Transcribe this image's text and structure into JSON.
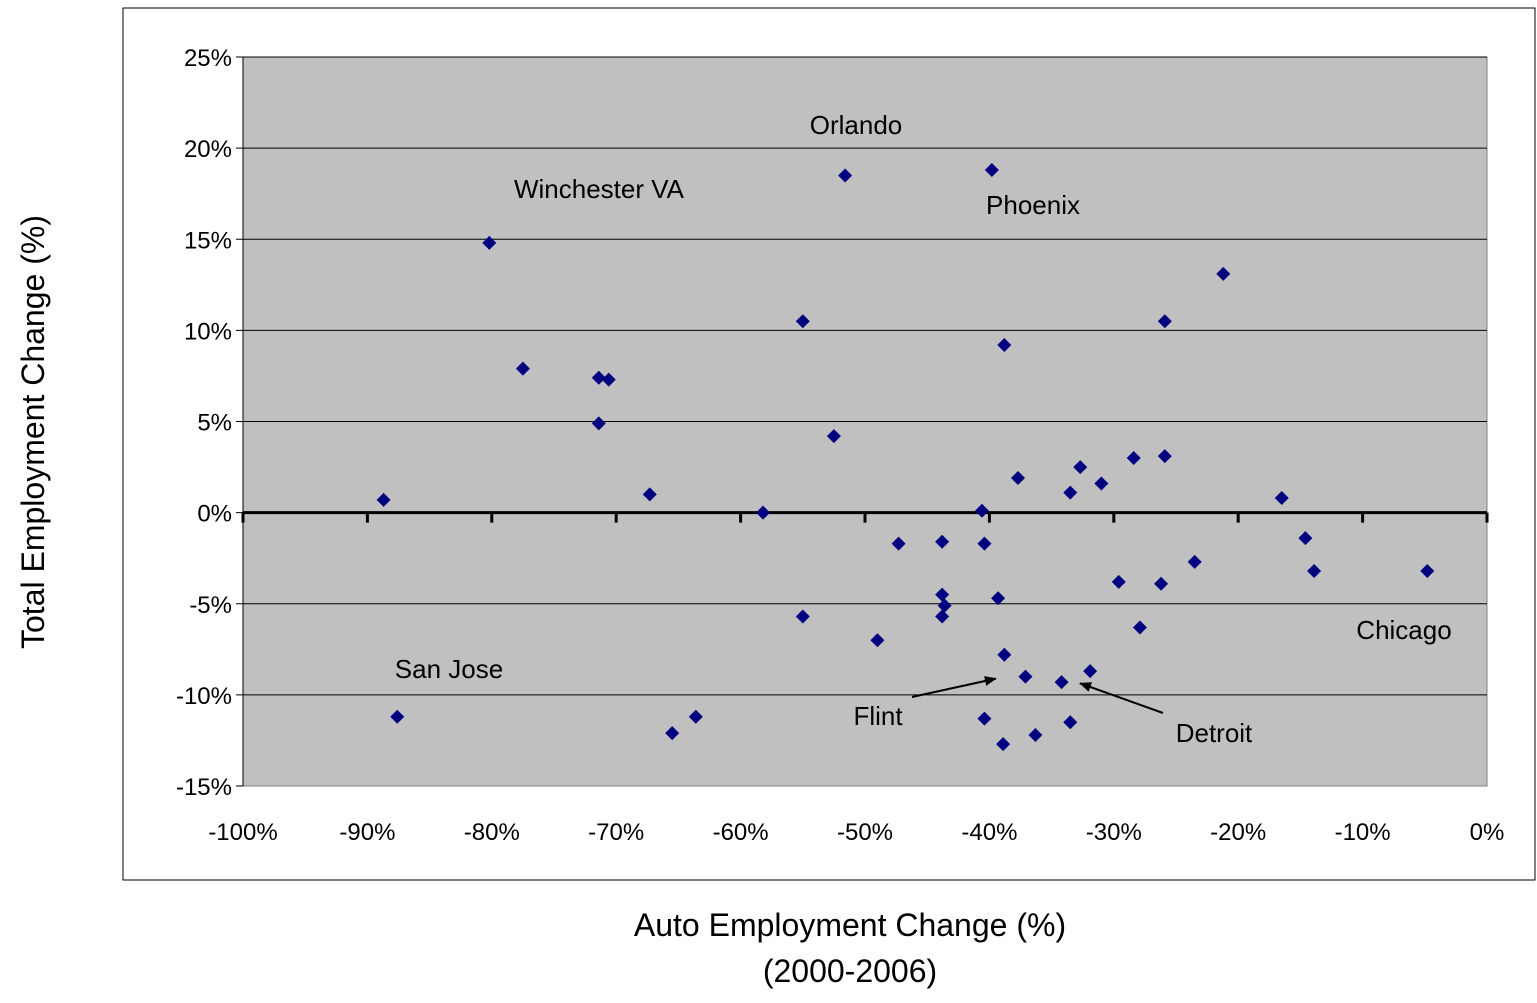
{
  "chart_data": {
    "type": "scatter",
    "title": "",
    "xlabel": "Auto Employment Change (%)",
    "xlabel_sub": "(2000-2006)",
    "ylabel": "Total Employment Change (%)",
    "xlim": [
      -100,
      0
    ],
    "ylim": [
      -15,
      25
    ],
    "x_ticks": [
      -100,
      -90,
      -80,
      -70,
      -60,
      -50,
      -40,
      -30,
      -20,
      -10,
      0
    ],
    "x_tick_labels": [
      "-100%",
      "-90%",
      "-80%",
      "-70%",
      "-60%",
      "-50%",
      "-40%",
      "-30%",
      "-20%",
      "-10%",
      "0%"
    ],
    "y_ticks": [
      -15,
      -10,
      -5,
      0,
      5,
      10,
      15,
      20,
      25
    ],
    "y_tick_labels": [
      "-15%",
      "-10%",
      "-5%",
      "0%",
      "5%",
      "10%",
      "15%",
      "20%",
      "25%"
    ],
    "grid": true,
    "legend": "none",
    "colors": {
      "plot_background": "#c0c0c0",
      "marker": "#000080",
      "gridline": "#000000",
      "zero_line": "#000000"
    },
    "points": [
      {
        "x": -88.7,
        "y": 0.7
      },
      {
        "x": -87.6,
        "y": -11.2
      },
      {
        "x": -80.2,
        "y": 14.8
      },
      {
        "x": -77.5,
        "y": 7.9
      },
      {
        "x": -71.4,
        "y": 7.4
      },
      {
        "x": -70.6,
        "y": 7.3
      },
      {
        "x": -71.4,
        "y": 4.9
      },
      {
        "x": -67.3,
        "y": 1.0
      },
      {
        "x": -65.5,
        "y": -12.1
      },
      {
        "x": -63.6,
        "y": -11.2
      },
      {
        "x": -58.2,
        "y": 0.0
      },
      {
        "x": -55.0,
        "y": 10.5
      },
      {
        "x": -55.0,
        "y": -5.7
      },
      {
        "x": -52.5,
        "y": 4.2
      },
      {
        "x": -51.6,
        "y": 18.5
      },
      {
        "x": -49.0,
        "y": -7.0
      },
      {
        "x": -47.3,
        "y": -1.7
      },
      {
        "x": -43.8,
        "y": -1.6
      },
      {
        "x": -43.8,
        "y": -4.5
      },
      {
        "x": -43.6,
        "y": -5.1
      },
      {
        "x": -43.8,
        "y": -5.7
      },
      {
        "x": -40.6,
        "y": 0.1
      },
      {
        "x": -40.4,
        "y": -1.7
      },
      {
        "x": -40.4,
        "y": -11.3
      },
      {
        "x": -39.8,
        "y": 18.8
      },
      {
        "x": -39.3,
        "y": -4.7
      },
      {
        "x": -38.8,
        "y": 9.2
      },
      {
        "x": -38.8,
        "y": -7.8
      },
      {
        "x": -38.9,
        "y": -12.7
      },
      {
        "x": -37.7,
        "y": 1.9
      },
      {
        "x": -37.1,
        "y": -9.0
      },
      {
        "x": -36.3,
        "y": -12.2
      },
      {
        "x": -34.2,
        "y": -9.3
      },
      {
        "x": -33.5,
        "y": 1.1
      },
      {
        "x": -33.5,
        "y": -11.5
      },
      {
        "x": -32.7,
        "y": 2.5
      },
      {
        "x": -31.9,
        "y": -8.7
      },
      {
        "x": -31.0,
        "y": 1.6
      },
      {
        "x": -29.6,
        "y": -3.8
      },
      {
        "x": -28.4,
        "y": 3.0
      },
      {
        "x": -27.9,
        "y": -6.3
      },
      {
        "x": -26.2,
        "y": -3.9
      },
      {
        "x": -25.9,
        "y": 10.5
      },
      {
        "x": -25.9,
        "y": 3.1
      },
      {
        "x": -23.5,
        "y": -2.7
      },
      {
        "x": -21.2,
        "y": 13.1
      },
      {
        "x": -16.5,
        "y": 0.8
      },
      {
        "x": -14.6,
        "y": -1.4
      },
      {
        "x": -13.9,
        "y": -3.2
      },
      {
        "x": -4.8,
        "y": -3.2
      }
    ],
    "annotations": [
      {
        "text": "Winchester VA"
      },
      {
        "text": "Orlando"
      },
      {
        "text": "Phoenix"
      },
      {
        "text": "San Jose"
      },
      {
        "text": "Chicago"
      },
      {
        "text": "Flint",
        "arrow_to": {
          "x": -39.0,
          "y": -9.0
        }
      },
      {
        "text": "Detroit",
        "arrow_to": {
          "x": -33.2,
          "y": -9.2
        }
      }
    ]
  }
}
